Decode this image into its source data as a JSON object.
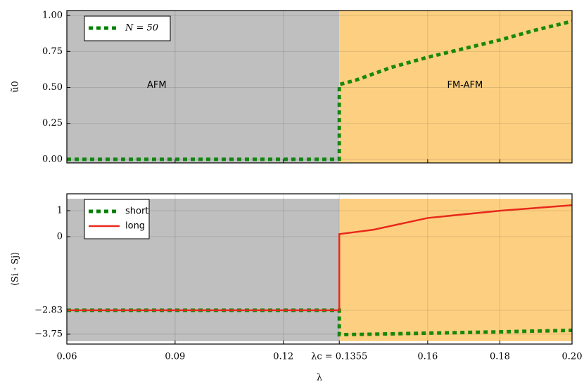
{
  "chart_data": [
    {
      "type": "line",
      "y_label": "ũ0",
      "x": [
        0.06,
        0.07,
        0.08,
        0.09,
        0.1,
        0.11,
        0.12,
        0.13,
        0.1355,
        0.1355,
        0.14,
        0.15,
        0.16,
        0.17,
        0.18,
        0.19,
        0.2
      ],
      "series": [
        {
          "name": "N = 50",
          "color": "#008000",
          "dash": true,
          "values": [
            0,
            0,
            0,
            0,
            0,
            0,
            0,
            0,
            0,
            0.52,
            0.55,
            0.64,
            0.71,
            0.77,
            0.83,
            0.9,
            0.96
          ]
        }
      ],
      "xlim": [
        0.06,
        0.2
      ],
      "ylim": [
        -0.025,
        1.035
      ],
      "xticks": [
        0.06,
        0.09,
        0.12,
        0.16,
        0.18,
        0.2
      ],
      "yticks": [
        {
          "value": 0,
          "label": "0.00"
        },
        {
          "value": 0.25,
          "label": "0.25"
        },
        {
          "value": 0.5,
          "label": "0.50"
        },
        {
          "value": 0.75,
          "label": "0.75"
        },
        {
          "value": 1,
          "label": "1.00"
        }
      ],
      "regions": [
        {
          "label": "AFM",
          "x": [
            0.06,
            0.1355
          ],
          "color": "#bfbfbf"
        },
        {
          "label": "FM-AFM",
          "x": [
            0.1355,
            0.2
          ],
          "color": "#fdd081"
        }
      ],
      "grid": true,
      "legend": "upper left"
    },
    {
      "type": "line",
      "y_label": "⟨Si · Sj⟩",
      "x_label": "λ",
      "x": [
        0.06,
        0.07,
        0.08,
        0.09,
        0.1,
        0.11,
        0.12,
        0.13,
        0.1355,
        0.1355,
        0.14,
        0.145,
        0.16,
        0.18,
        0.2
      ],
      "series": [
        {
          "name": "short",
          "color": "#008000",
          "dash": true,
          "values": [
            -2.83,
            -2.83,
            -2.83,
            -2.83,
            -2.83,
            -2.83,
            -2.83,
            -2.83,
            -2.83,
            -3.77,
            -3.76,
            -3.75,
            -3.71,
            -3.66,
            -3.6
          ]
        },
        {
          "name": "long",
          "color": "#e8291c",
          "dash": false,
          "values": [
            -2.83,
            -2.83,
            -2.83,
            -2.83,
            -2.83,
            -2.83,
            -2.83,
            -2.83,
            -2.83,
            0.1,
            0.18,
            0.27,
            0.72,
            1.0,
            1.21
          ]
        }
      ],
      "xlim": [
        0.06,
        0.2
      ],
      "ylim": [
        -4.13,
        1.65
      ],
      "xticks": [
        0.06,
        0.09,
        0.12,
        {
          "value": 0.1355,
          "label": "λc = 0.1355"
        },
        0.16,
        0.18,
        {
          "value": 0.2,
          "label": "0.20"
        }
      ],
      "yticks": [
        {
          "value": -3.75,
          "label": "−3.75"
        },
        {
          "value": -2.83,
          "label": "−2.83"
        },
        0,
        1
      ],
      "regions": [
        {
          "x": [
            0.06,
            0.1355
          ],
          "y": [
            -4.02,
            1.46
          ],
          "color": "#bfbfbf"
        },
        {
          "x": [
            0.1355,
            0.2
          ],
          "y": [
            -4.02,
            1.46
          ],
          "color": "#fdd081"
        }
      ],
      "grid": true,
      "legend": "upper left"
    }
  ]
}
